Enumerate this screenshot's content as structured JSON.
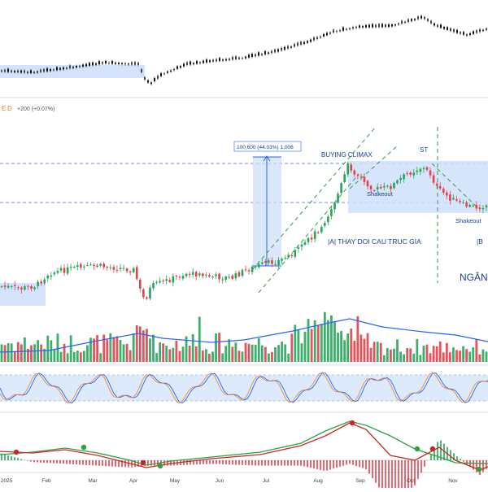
{
  "header": {
    "symbol_tag": "E",
    "interval_tag": "D",
    "change_text": "+200 (+0.07%)"
  },
  "colors": {
    "up": "#26a65b",
    "down": "#e0434b",
    "accent": "#2962ff",
    "zone": "#cfe0fb",
    "trend": "#2ea043"
  },
  "annotations": {
    "measure_label": "100,600 (44.03%) 1,006",
    "buying_climax": "BUYING CLIMAX",
    "st": "ST",
    "shakeout_1": "Shakeout",
    "shakeout_2": "Shakeout",
    "phase_a": "|A| THAY DOI CAU TRUC GIA",
    "phase_b": "|B",
    "ngan": "NGÂN"
  },
  "chart_data": {
    "type": "candlestick",
    "x_tick_labels": [
      "2025",
      "Feb",
      "Mar",
      "Apr",
      "May",
      "Jun",
      "Jul",
      "Aug",
      "Sep",
      "Oct",
      "Nov"
    ],
    "main_close_path": [
      {
        "m": "2025",
        "v": 1268
      },
      {
        "m": "Jan",
        "v": 1262
      },
      {
        "m": "Feb",
        "v": 1275
      },
      {
        "m": "Mar",
        "v": 1318
      },
      {
        "m": "Apr",
        "v": 1310
      },
      {
        "m": "Apr",
        "v": 1120
      },
      {
        "m": "May",
        "v": 1235
      },
      {
        "m": "Jun",
        "v": 1340
      },
      {
        "m": "Jul",
        "v": 1420
      },
      {
        "m": "Aug",
        "v": 1600
      },
      {
        "m": "Sep",
        "v": 1680
      },
      {
        "m": "Oct",
        "v": 1640
      },
      {
        "m": "Nov",
        "v": 1615
      }
    ],
    "measure": {
      "points": 100600,
      "percent": 44.03,
      "bars": 1006
    },
    "indicators": [
      "volume",
      "stochastic",
      "macd"
    ],
    "grid": true
  }
}
